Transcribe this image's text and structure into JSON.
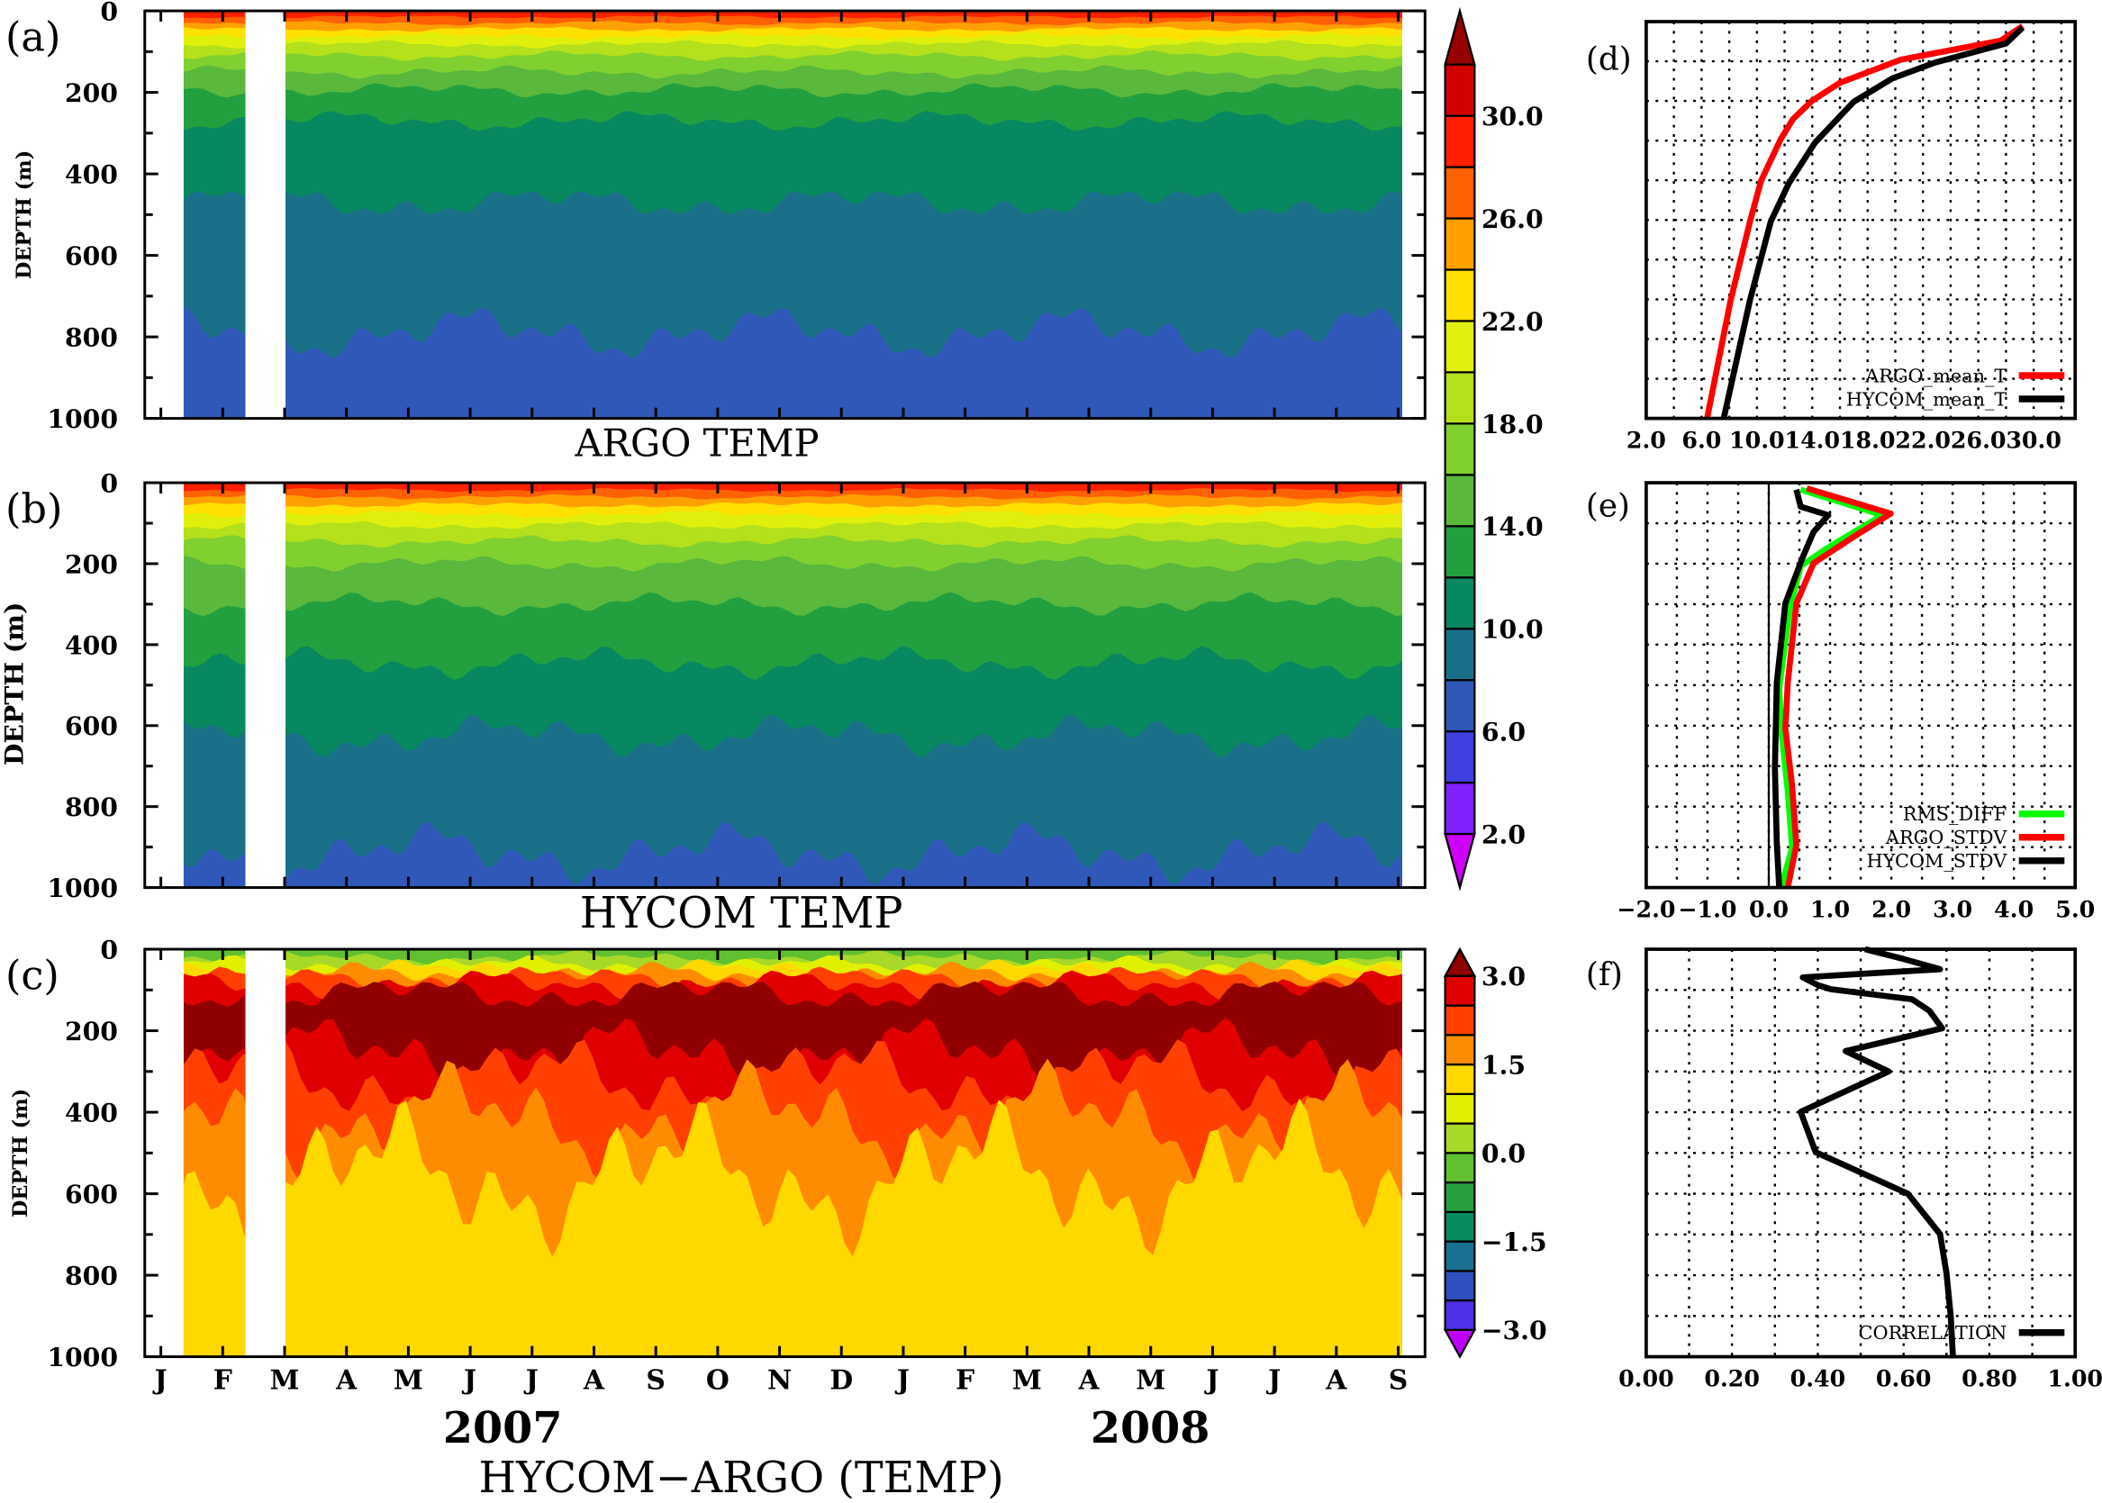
{
  "chart_data": [
    {
      "panel": "(a)",
      "type": "heatmap",
      "title": "ARGO TEMP",
      "ylabel": "DEPTH (m)",
      "ylim": [
        1000,
        0
      ],
      "yticks": [
        "0",
        "200",
        "400",
        "600",
        "800",
        "1000"
      ],
      "x_months": [
        "J",
        "F",
        "M",
        "A",
        "M",
        "J",
        "J",
        "A",
        "S",
        "O",
        "N",
        "D",
        "J",
        "F",
        "M",
        "A",
        "M",
        "J",
        "J",
        "A",
        "S"
      ],
      "data_periods": [
        [
          "2007-01-12",
          "2007-02-12"
        ],
        [
          "2007-03-02",
          "2008-09-02"
        ]
      ],
      "colorbar": "temp",
      "bands": [
        {
          "from": 28,
          "bottom": 15
        },
        {
          "from": 26,
          "bottom": 30
        },
        {
          "from": 24,
          "bottom": 45
        },
        {
          "from": 22,
          "bottom": 62
        },
        {
          "from": 20,
          "bottom": 82
        },
        {
          "from": 18,
          "bottom": 110
        },
        {
          "from": 16,
          "bottom": 150
        },
        {
          "from": 14,
          "bottom": 195
        },
        {
          "from": 12,
          "bottom": 270
        },
        {
          "from": 10,
          "bottom": 470
        },
        {
          "from": 8,
          "bottom": 790
        },
        {
          "from": 6,
          "bottom": 1000
        }
      ]
    },
    {
      "panel": "(b)",
      "type": "heatmap",
      "title": "HYCOM TEMP",
      "ylabel": "DEPTH (m)",
      "ylim": [
        1000,
        0
      ],
      "yticks": [
        "0",
        "200",
        "400",
        "600",
        "800",
        "1000"
      ],
      "colorbar": "temp",
      "bands": [
        {
          "from": 28,
          "bottom": 18
        },
        {
          "from": 26,
          "bottom": 35
        },
        {
          "from": 24,
          "bottom": 55
        },
        {
          "from": 22,
          "bottom": 78
        },
        {
          "from": 20,
          "bottom": 105
        },
        {
          "from": 18,
          "bottom": 145
        },
        {
          "from": 16,
          "bottom": 200
        },
        {
          "from": 14,
          "bottom": 300
        },
        {
          "from": 12,
          "bottom": 445
        },
        {
          "from": 10,
          "bottom": 625
        },
        {
          "from": 8,
          "bottom": 915
        },
        {
          "from": 6,
          "bottom": 1000
        }
      ]
    },
    {
      "panel": "(c)",
      "type": "heatmap",
      "title": "HYCOM−ARGO (TEMP)",
      "ylabel": "DEPTH (m)",
      "ylim": [
        1000,
        0
      ],
      "yticks": [
        "0",
        "200",
        "400",
        "600",
        "800",
        "1000"
      ],
      "x_months": [
        "J",
        "F",
        "M",
        "A",
        "M",
        "J",
        "J",
        "A",
        "S",
        "O",
        "N",
        "D",
        "J",
        "F",
        "M",
        "A",
        "M",
        "J",
        "J",
        "A",
        "S"
      ],
      "years": [
        "2007",
        "2008"
      ],
      "colorbar": "diff",
      "bands": [
        {
          "from": -0.5,
          "bottom": 20
        },
        {
          "from": 0.0,
          "bottom": 38
        },
        {
          "from": 0.5,
          "bottom": 52
        },
        {
          "from": 1.0,
          "bottom": 62
        },
        {
          "from": 1.5,
          "bottom": 72
        },
        {
          "from": 2.0,
          "bottom": 88
        },
        {
          "from": 2.5,
          "bottom": 110
        },
        {
          "from": 3.0,
          "bottom": 255
        },
        {
          "from": 2.5,
          "bottom": 320
        },
        {
          "from": 2.0,
          "bottom": 420
        },
        {
          "from": 1.5,
          "bottom": 560
        },
        {
          "from": 1.0,
          "bottom": 1000
        }
      ]
    },
    {
      "panel": "(d)",
      "type": "line",
      "xlim": [
        2,
        33
      ],
      "ylim": [
        1000,
        0
      ],
      "xticks": [
        "2.0",
        "6.0",
        "10.0",
        "14.0",
        "18.0",
        "22.0",
        "26.0",
        "30.0"
      ],
      "xtick_values": [
        2,
        6,
        10,
        14,
        18,
        22,
        26,
        30
      ],
      "grid": true,
      "legend": "bottom-right",
      "series": [
        {
          "name": "ARGO_mean_T",
          "color": "#ff0000",
          "points": [
            [
              29.2,
              11
            ],
            [
              27.6,
              48
            ],
            [
              20.4,
              96
            ],
            [
              17.9,
              129
            ],
            [
              16,
              154
            ],
            [
              14,
              199
            ],
            [
              12.6,
              246
            ],
            [
              11.7,
              298
            ],
            [
              10.3,
              401
            ],
            [
              9.5,
              504
            ],
            [
              8.1,
              702
            ],
            [
              6.4,
              1000
            ]
          ]
        },
        {
          "name": "HYCOM_mean_T",
          "color": "#000000",
          "points": [
            [
              29.2,
              15
            ],
            [
              28,
              55
            ],
            [
              22.9,
              103
            ],
            [
              19.8,
              143
            ],
            [
              17,
              202
            ],
            [
              14.2,
              305
            ],
            [
              12.3,
              408
            ],
            [
              11,
              504
            ],
            [
              9.5,
              702
            ],
            [
              7.6,
              1000
            ]
          ]
        }
      ]
    },
    {
      "panel": "(e)",
      "type": "line",
      "xlim": [
        -2,
        5
      ],
      "ylim": [
        1000,
        0
      ],
      "xticks": [
        "−2.0",
        "−1.0",
        "0.0",
        "1.0",
        "2.0",
        "3.0",
        "4.0",
        "5.0"
      ],
      "xtick_values": [
        -2,
        -1,
        0,
        1,
        2,
        3,
        4,
        5
      ],
      "grid": true,
      "legend": "bottom-right",
      "zero_line": true,
      "series": [
        {
          "name": "RMS_DIFF",
          "color": "#00ff00",
          "points": [
            [
              0.52,
              17
            ],
            [
              1.85,
              80
            ],
            [
              1.0,
              157
            ],
            [
              0.52,
              206
            ],
            [
              0.34,
              312
            ],
            [
              0.17,
              508
            ],
            [
              0.2,
              607
            ],
            [
              0.31,
              761
            ],
            [
              0.38,
              902
            ],
            [
              0.2,
              1000
            ]
          ]
        },
        {
          "name": "ARGO_STDV",
          "color": "#ff0000",
          "points": [
            [
              0.62,
              14
            ],
            [
              1.99,
              76
            ],
            [
              1.43,
              129
            ],
            [
              0.73,
              199
            ],
            [
              0.45,
              298
            ],
            [
              0.31,
              494
            ],
            [
              0.27,
              607
            ],
            [
              0.38,
              747
            ],
            [
              0.45,
              895
            ],
            [
              0.31,
              1000
            ]
          ]
        },
        {
          "name": "HYCOM_STDV",
          "color": "#000000",
          "points": [
            [
              0.45,
              17
            ],
            [
              0.52,
              59
            ],
            [
              0.97,
              80
            ],
            [
              0.73,
              122
            ],
            [
              0.55,
              185
            ],
            [
              0.27,
              298
            ],
            [
              0.13,
              494
            ],
            [
              0.1,
              705
            ],
            [
              0.13,
              888
            ],
            [
              0.17,
              1000
            ]
          ]
        }
      ]
    },
    {
      "panel": "(f)",
      "type": "line",
      "xlim": [
        0,
        1
      ],
      "ylim": [
        1000,
        0
      ],
      "xticks": [
        "0.00",
        "0.20",
        "0.40",
        "0.60",
        "0.80",
        "1.00"
      ],
      "xtick_values": [
        0,
        0.2,
        0.4,
        0.6,
        0.8,
        1.0
      ],
      "grid": true,
      "legend": "bottom-right",
      "series": [
        {
          "name": "CORRELATION",
          "color": "#000000",
          "points": [
            [
              0.51,
              0
            ],
            [
              0.6,
              24
            ],
            [
              0.685,
              49
            ],
            [
              0.365,
              69
            ],
            [
              0.4,
              88
            ],
            [
              0.43,
              98
            ],
            [
              0.62,
              123
            ],
            [
              0.66,
              151
            ],
            [
              0.69,
              194
            ],
            [
              0.465,
              250
            ],
            [
              0.565,
              300
            ],
            [
              0.36,
              399
            ],
            [
              0.395,
              498
            ],
            [
              0.61,
              600
            ],
            [
              0.685,
              699
            ],
            [
              0.7,
              795
            ],
            [
              0.71,
              902
            ],
            [
              0.715,
              1000
            ]
          ]
        }
      ]
    }
  ],
  "colorbars": {
    "temp": {
      "levels": [
        2,
        4,
        6,
        8,
        10,
        12,
        14,
        16,
        18,
        20,
        22,
        24,
        26,
        28,
        30,
        32
      ],
      "labels": [
        "2.0",
        "6.0",
        "10.0",
        "14.0",
        "18.0",
        "22.0",
        "26.0",
        "30.0"
      ],
      "label_values": [
        2,
        6,
        10,
        14,
        18,
        22,
        26,
        30
      ],
      "under_color": "#d000ff",
      "over_color": "#960000",
      "colors": [
        "#8020ff",
        "#4040e0",
        "#3058b8",
        "#1a7088",
        "#088860",
        "#22a040",
        "#5ab83c",
        "#80d030",
        "#b4e01c",
        "#e0f00c",
        "#ffe000",
        "#ffa000",
        "#ff6000",
        "#ff2000",
        "#d40000"
      ]
    },
    "diff": {
      "levels": [
        -3,
        -2.5,
        -2,
        -1.5,
        -1,
        -0.5,
        0,
        0.5,
        1,
        1.5,
        2,
        2.5,
        3
      ],
      "labels": [
        "−3.0",
        "−1.5",
        "0.0",
        "1.5",
        "3.0"
      ],
      "label_values": [
        -3,
        -1.5,
        0,
        1.5,
        3
      ],
      "under_color": "#c000ff",
      "over_color": "#900000",
      "colors": [
        "#5030e8",
        "#3050c0",
        "#1a7090",
        "#0a8a60",
        "#28a040",
        "#60c030",
        "#a8d828",
        "#e0f000",
        "#ffd800",
        "#ff8c00",
        "#ff4000",
        "#e00000"
      ]
    }
  }
}
